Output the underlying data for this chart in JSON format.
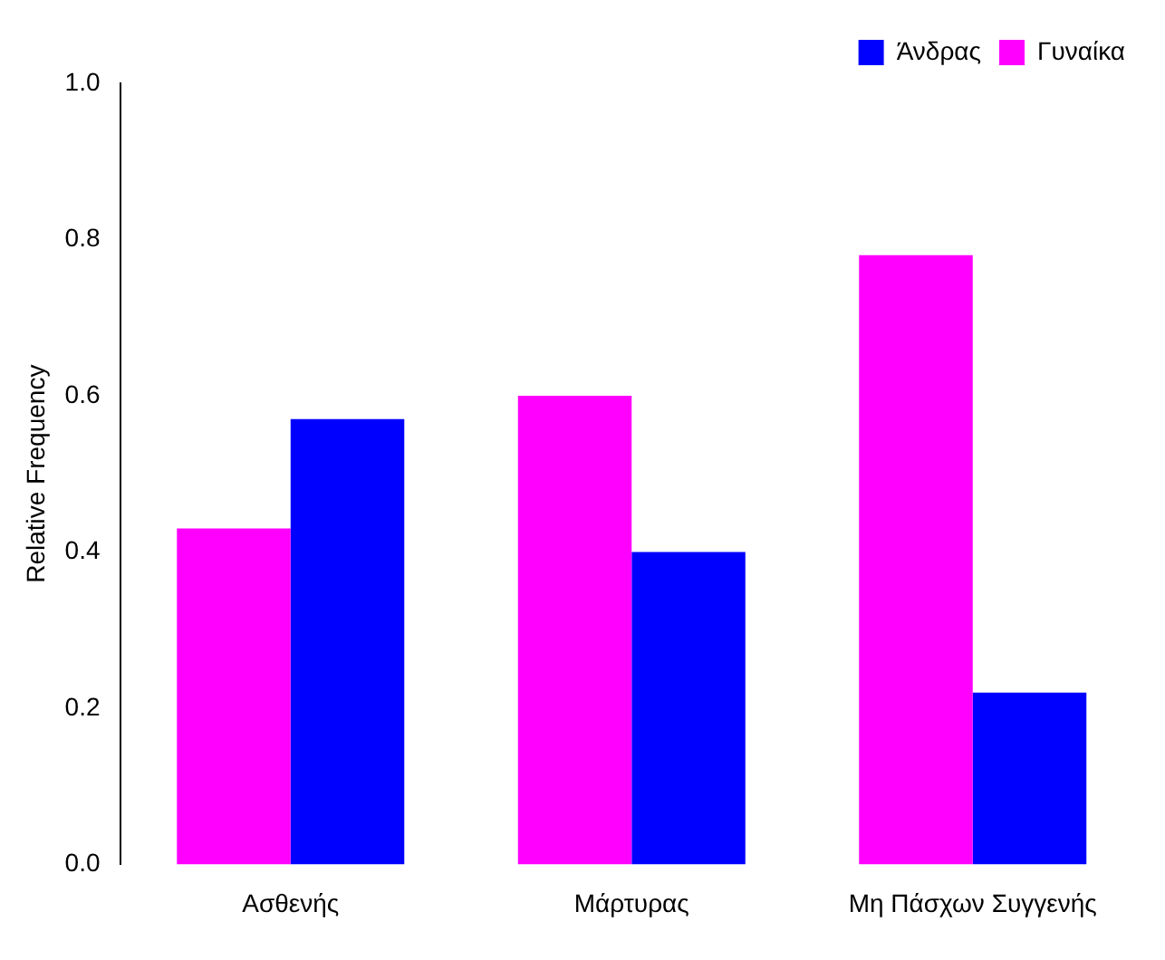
{
  "chart_data": {
    "type": "bar",
    "ylabel": "Relative Frequency",
    "categories": [
      "Ασθενής",
      "Μάρτυρας",
      "Μη Πάσχων Συγγενής"
    ],
    "series": [
      {
        "name": "Γυναίκα",
        "color": "#ff00ff",
        "values": [
          0.43,
          0.6,
          0.78
        ]
      },
      {
        "name": "Άνδρας",
        "color": "#0000ff",
        "values": [
          0.57,
          0.4,
          0.22
        ]
      }
    ],
    "ylim": [
      0,
      1
    ],
    "yticks": [
      {
        "value": 0,
        "label": "0.0"
      },
      0.2,
      0.4,
      0.6,
      0.8,
      {
        "value": 1,
        "label": "1.0"
      }
    ],
    "grid": false,
    "legend": "top right"
  }
}
